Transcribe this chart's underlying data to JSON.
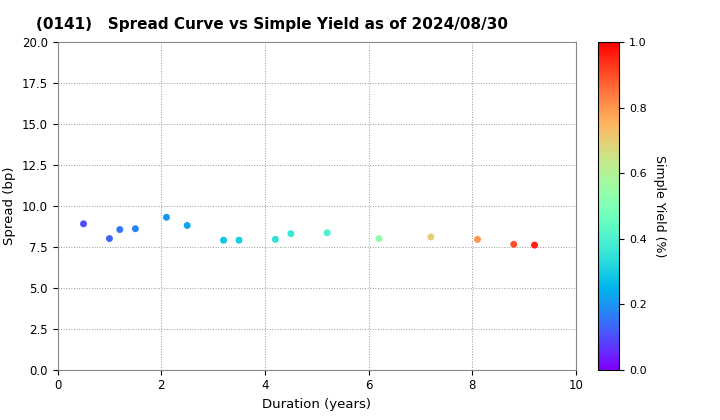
{
  "title": "(0141)   Spread Curve vs Simple Yield as of 2024/08/30",
  "xlabel": "Duration (years)",
  "ylabel": "Spread (bp)",
  "colorbar_label": "Simple Yield (%)",
  "xlim": [
    0,
    10
  ],
  "ylim": [
    0.0,
    20.0
  ],
  "yticks": [
    0.0,
    2.5,
    5.0,
    7.5,
    10.0,
    12.5,
    15.0,
    17.5,
    20.0
  ],
  "xticks": [
    0,
    2,
    4,
    6,
    8,
    10
  ],
  "colorbar_range": [
    0.0,
    1.0
  ],
  "colorbar_ticks": [
    0.0,
    0.2,
    0.4,
    0.6,
    0.8,
    1.0
  ],
  "points": [
    {
      "duration": 0.5,
      "spread": 8.9,
      "simple_yield": 0.1
    },
    {
      "duration": 1.0,
      "spread": 8.0,
      "simple_yield": 0.13
    },
    {
      "duration": 1.2,
      "spread": 8.55,
      "simple_yield": 0.16
    },
    {
      "duration": 1.5,
      "spread": 8.6,
      "simple_yield": 0.18
    },
    {
      "duration": 2.1,
      "spread": 9.3,
      "simple_yield": 0.2
    },
    {
      "duration": 2.5,
      "spread": 8.8,
      "simple_yield": 0.23
    },
    {
      "duration": 3.2,
      "spread": 7.9,
      "simple_yield": 0.28
    },
    {
      "duration": 3.5,
      "spread": 7.9,
      "simple_yield": 0.3
    },
    {
      "duration": 4.2,
      "spread": 7.95,
      "simple_yield": 0.34
    },
    {
      "duration": 4.5,
      "spread": 8.3,
      "simple_yield": 0.36
    },
    {
      "duration": 5.2,
      "spread": 8.35,
      "simple_yield": 0.4
    },
    {
      "duration": 6.2,
      "spread": 8.0,
      "simple_yield": 0.52
    },
    {
      "duration": 7.2,
      "spread": 8.1,
      "simple_yield": 0.7
    },
    {
      "duration": 8.1,
      "spread": 7.95,
      "simple_yield": 0.8
    },
    {
      "duration": 8.8,
      "spread": 7.65,
      "simple_yield": 0.9
    },
    {
      "duration": 9.2,
      "spread": 7.6,
      "simple_yield": 0.96
    }
  ],
  "marker_size": 25,
  "background_color": "#ffffff",
  "grid_color": "#999999",
  "grid_linestyle": ":"
}
